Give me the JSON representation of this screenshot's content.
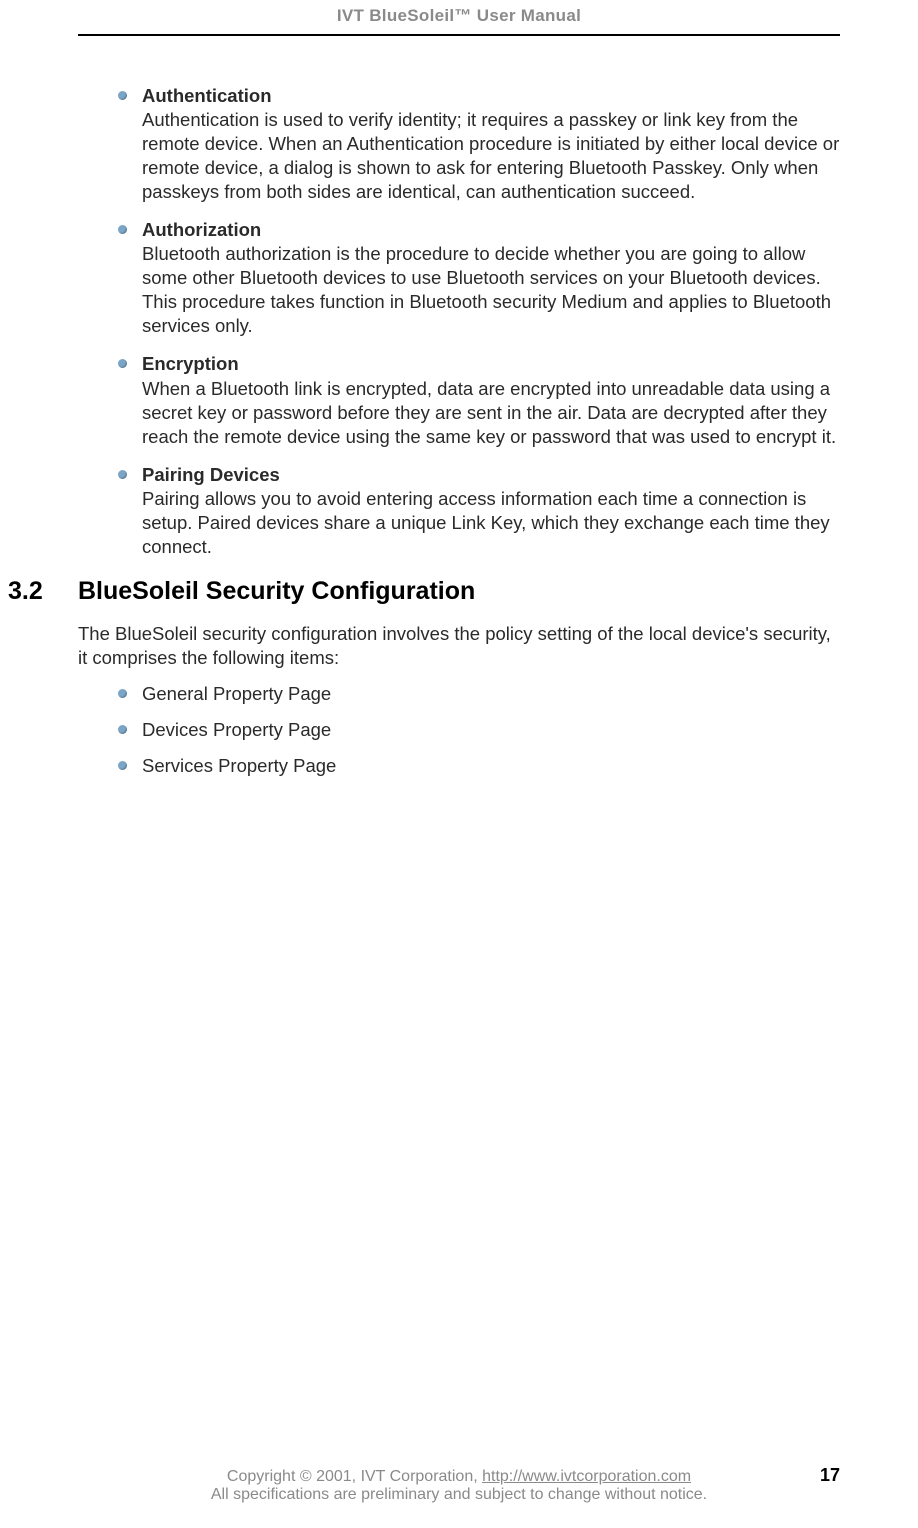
{
  "header": {
    "title": "IVT BlueSoleil™ User Manual"
  },
  "definitions": [
    {
      "title": "Authentication",
      "body": "Authentication is used to verify identity; it requires a passkey or link key from the remote device. When an Authentication procedure is initiated by either local device or remote device, a dialog is shown to ask for entering Bluetooth Passkey. Only when passkeys from both sides are identical, can authentication succeed."
    },
    {
      "title": "Authorization",
      "body": "Bluetooth authorization is the procedure to decide whether you are going to allow some other Bluetooth devices to use Bluetooth services on your Bluetooth devices. This procedure takes function in Bluetooth security Medium and applies to Bluetooth services only."
    },
    {
      "title": "Encryption",
      "body": "When a Bluetooth link is encrypted, data are encrypted into unreadable data using a secret key or password before they are sent in the air. Data are decrypted after they reach the remote device using the same key or password that was used to encrypt it."
    },
    {
      "title": "Pairing Devices",
      "body": "Pairing allows you to avoid entering access information each time a connection is setup. Paired devices share a unique Link Key, which they exchange each time they connect."
    }
  ],
  "section": {
    "number": "3.2",
    "title": "BlueSoleil Security Configuration",
    "intro": "The BlueSoleil security configuration involves the policy setting of the local device's security, it comprises the following items:",
    "items": [
      "General Property Page",
      "Devices Property Page",
      "Services Property Page"
    ]
  },
  "footer": {
    "copyright_prefix": "Copyright © 2001, IVT Corporation, ",
    "url": "http://www.ivtcorporation.com",
    "disclaimer": "All specifications are preliminary and subject to change without notice.",
    "page_number": "17"
  }
}
